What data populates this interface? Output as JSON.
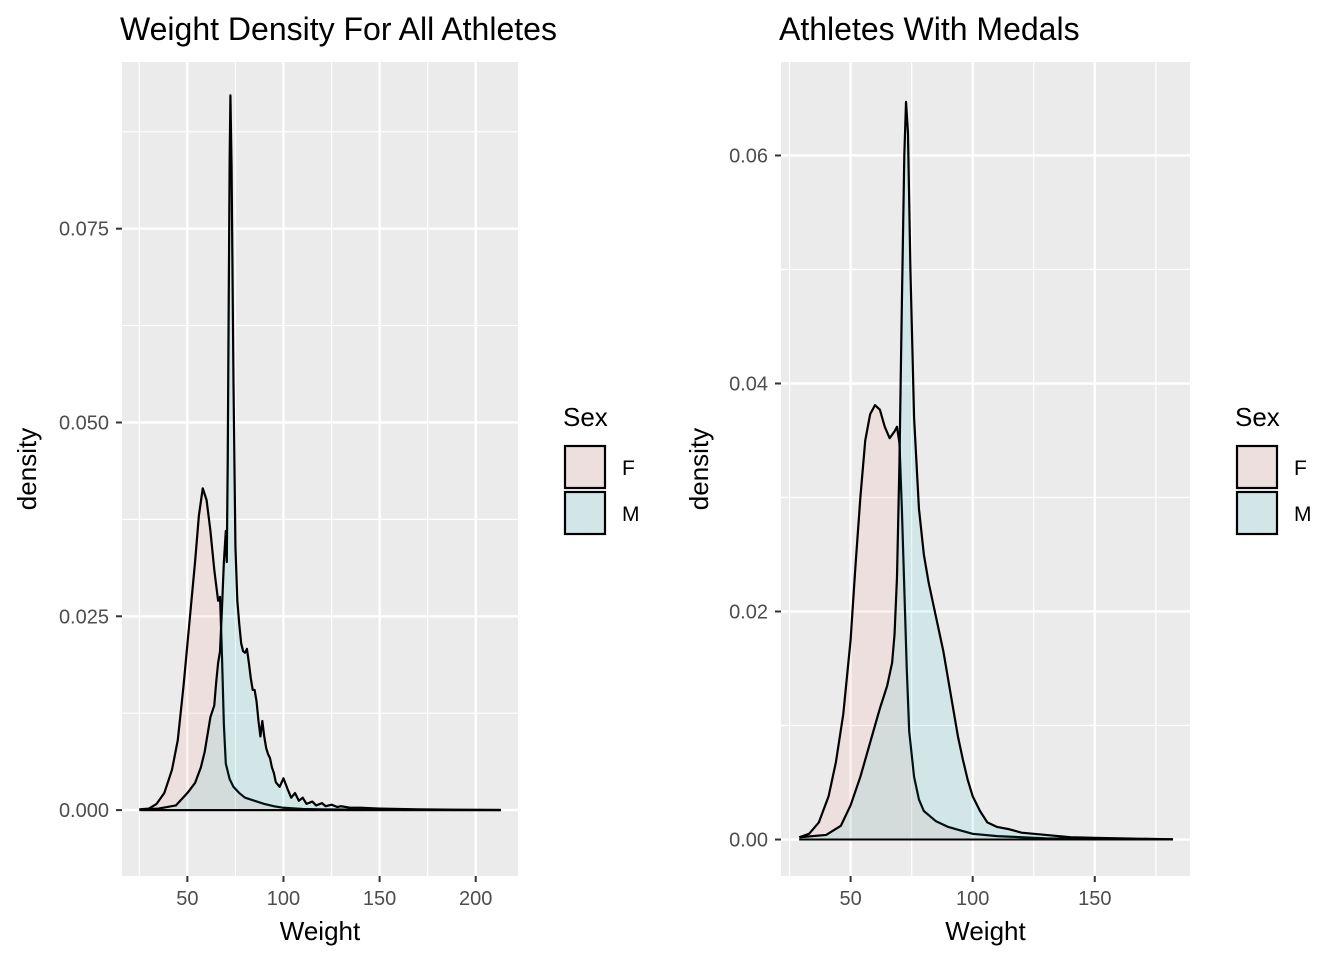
{
  "chart_data": [
    {
      "type": "area",
      "subtype": "density",
      "title": "Weight Density For All Athletes",
      "xlabel": "Weight",
      "ylabel": "density",
      "xlim": [
        16,
        222
      ],
      "ylim": [
        -0.0085,
        0.0965
      ],
      "x_ticks": [
        50,
        100,
        150,
        200
      ],
      "x_tick_labels": [
        "50",
        "100",
        "150",
        "200"
      ],
      "y_ticks": [
        0,
        0.025,
        0.05,
        0.075
      ],
      "y_tick_labels": [
        "0.000",
        "0.025",
        "0.050",
        "0.075"
      ],
      "grid": true,
      "legend": {
        "title": "Sex",
        "position": "right",
        "entries": [
          "F",
          "M"
        ]
      },
      "series": [
        {
          "name": "F",
          "color": "#F8766D",
          "points": [
            [
              25,
              0.0001
            ],
            [
              30,
              0.0002
            ],
            [
              34,
              0.0008
            ],
            [
              38,
              0.0022
            ],
            [
              42,
              0.0052
            ],
            [
              45,
              0.009
            ],
            [
              48,
              0.016
            ],
            [
              51,
              0.024
            ],
            [
              54,
              0.032
            ],
            [
              56,
              0.038
            ],
            [
              58,
              0.0415
            ],
            [
              60,
              0.04
            ],
            [
              62,
              0.036
            ],
            [
              64,
              0.031
            ],
            [
              66,
              0.027
            ],
            [
              67,
              0.0275
            ],
            [
              68,
              0.02
            ],
            [
              69,
              0.011
            ],
            [
              70,
              0.006
            ],
            [
              72,
              0.004
            ],
            [
              74,
              0.003
            ],
            [
              77,
              0.0022
            ],
            [
              80,
              0.0016
            ],
            [
              85,
              0.0012
            ],
            [
              90,
              0.0008
            ],
            [
              95,
              0.0005
            ],
            [
              100,
              0.0003
            ],
            [
              110,
              0.00015
            ],
            [
              120,
              0.0001
            ],
            [
              140,
              5e-05
            ],
            [
              170,
              2e-05
            ],
            [
              213,
              1e-05
            ]
          ]
        },
        {
          "name": "M",
          "color": "#00BFC4",
          "points": [
            [
              26,
              0.0001
            ],
            [
              35,
              0.0002
            ],
            [
              44,
              0.0006
            ],
            [
              50,
              0.0022
            ],
            [
              54,
              0.0035
            ],
            [
              57,
              0.0055
            ],
            [
              59,
              0.0075
            ],
            [
              62,
              0.012
            ],
            [
              64,
              0.0135
            ],
            [
              65,
              0.0165
            ],
            [
              66,
              0.019
            ],
            [
              67,
              0.0205
            ],
            [
              68,
              0.026
            ],
            [
              69,
              0.032
            ],
            [
              70,
              0.036
            ],
            [
              70.5,
              0.032
            ],
            [
              71,
              0.045
            ],
            [
              71.5,
              0.065
            ],
            [
              72,
              0.084
            ],
            [
              72.4,
              0.0922
            ],
            [
              73,
              0.083
            ],
            [
              74,
              0.055
            ],
            [
              75,
              0.034
            ],
            [
              76,
              0.027
            ],
            [
              77,
              0.024
            ],
            [
              78,
              0.0215
            ],
            [
              79,
              0.0205
            ],
            [
              80,
              0.0203
            ],
            [
              81,
              0.0208
            ],
            [
              82,
              0.019
            ],
            [
              83,
              0.017
            ],
            [
              84,
              0.0155
            ],
            [
              85,
              0.0155
            ],
            [
              86,
              0.014
            ],
            [
              87,
              0.0115
            ],
            [
              88,
              0.0095
            ],
            [
              89,
              0.0115
            ],
            [
              90,
              0.0095
            ],
            [
              91,
              0.008
            ],
            [
              92,
              0.0072
            ],
            [
              93,
              0.0067
            ],
            [
              94,
              0.0055
            ],
            [
              95,
              0.0048
            ],
            [
              96,
              0.0036
            ],
            [
              98,
              0.003
            ],
            [
              100,
              0.0041
            ],
            [
              102,
              0.0028
            ],
            [
              104,
              0.0016
            ],
            [
              106,
              0.0022
            ],
            [
              108,
              0.0012
            ],
            [
              110,
              0.0016
            ],
            [
              112,
              0.0008
            ],
            [
              115,
              0.0011
            ],
            [
              117,
              0.0006
            ],
            [
              120,
              0.0009
            ],
            [
              122,
              0.0005
            ],
            [
              125,
              0.0007
            ],
            [
              128,
              0.0004
            ],
            [
              130,
              0.0005
            ],
            [
              135,
              0.0003
            ],
            [
              140,
              0.0003
            ],
            [
              150,
              0.0002
            ],
            [
              160,
              0.00015
            ],
            [
              170,
              0.0001
            ],
            [
              190,
              5e-05
            ],
            [
              213,
              2e-05
            ]
          ]
        }
      ]
    },
    {
      "type": "area",
      "subtype": "density",
      "title": "Athletes With Medals",
      "xlabel": "Weight",
      "ylabel": "density",
      "xlim": [
        21.5,
        189
      ],
      "ylim": [
        -0.0032,
        0.0682
      ],
      "x_ticks": [
        50,
        100,
        150
      ],
      "x_tick_labels": [
        "50",
        "100",
        "150"
      ],
      "y_ticks": [
        0,
        0.02,
        0.04,
        0.06
      ],
      "y_tick_labels": [
        "0.00",
        "0.02",
        "0.04",
        "0.06"
      ],
      "grid": true,
      "legend": {
        "title": "Sex",
        "position": "right",
        "entries": [
          "F",
          "M"
        ]
      },
      "series": [
        {
          "name": "F",
          "color": "#F8766D",
          "points": [
            [
              29,
              0.0002
            ],
            [
              33,
              0.0005
            ],
            [
              37,
              0.0015
            ],
            [
              41,
              0.0038
            ],
            [
              44,
              0.0068
            ],
            [
              47,
              0.011
            ],
            [
              50,
              0.0175
            ],
            [
              52,
              0.024
            ],
            [
              54,
              0.03
            ],
            [
              56,
              0.035
            ],
            [
              58,
              0.0373
            ],
            [
              60,
              0.0381
            ],
            [
              62,
              0.0377
            ],
            [
              64,
              0.0362
            ],
            [
              66,
              0.0352
            ],
            [
              68,
              0.0358
            ],
            [
              69,
              0.0362
            ],
            [
              70,
              0.0348
            ],
            [
              71,
              0.029
            ],
            [
              72,
              0.022
            ],
            [
              73,
              0.015
            ],
            [
              74,
              0.0095
            ],
            [
              76,
              0.0055
            ],
            [
              78,
              0.0035
            ],
            [
              80,
              0.0025
            ],
            [
              85,
              0.0016
            ],
            [
              90,
              0.0011
            ],
            [
              95,
              0.0008
            ],
            [
              100,
              0.0005
            ],
            [
              110,
              0.0003
            ],
            [
              130,
              0.0001
            ],
            [
              182,
              2e-05
            ]
          ]
        },
        {
          "name": "M",
          "color": "#00BFC4",
          "points": [
            [
              29,
              0.0002
            ],
            [
              40,
              0.0004
            ],
            [
              46,
              0.0012
            ],
            [
              50,
              0.003
            ],
            [
              54,
              0.0055
            ],
            [
              58,
              0.0085
            ],
            [
              62,
              0.0115
            ],
            [
              65,
              0.0135
            ],
            [
              67,
              0.0155
            ],
            [
              68,
              0.018
            ],
            [
              69,
              0.023
            ],
            [
              70,
              0.033
            ],
            [
              71,
              0.047
            ],
            [
              72,
              0.06
            ],
            [
              72.7,
              0.0647
            ],
            [
              73.5,
              0.062
            ],
            [
              74.5,
              0.05
            ],
            [
              76,
              0.037
            ],
            [
              78,
              0.029
            ],
            [
              80,
              0.025
            ],
            [
              82,
              0.0225
            ],
            [
              84,
              0.0205
            ],
            [
              86,
              0.0185
            ],
            [
              88,
              0.0165
            ],
            [
              90,
              0.014
            ],
            [
              92,
              0.0115
            ],
            [
              94,
              0.009
            ],
            [
              96,
              0.007
            ],
            [
              98,
              0.0052
            ],
            [
              100,
              0.0038
            ],
            [
              103,
              0.0025
            ],
            [
              106,
              0.0015
            ],
            [
              110,
              0.0011
            ],
            [
              115,
              0.0009
            ],
            [
              120,
              0.0006
            ],
            [
              125,
              0.0005
            ],
            [
              130,
              0.0004
            ],
            [
              140,
              0.0002
            ],
            [
              150,
              0.00015
            ],
            [
              160,
              0.0001
            ],
            [
              182,
              2e-05
            ]
          ]
        }
      ]
    }
  ]
}
